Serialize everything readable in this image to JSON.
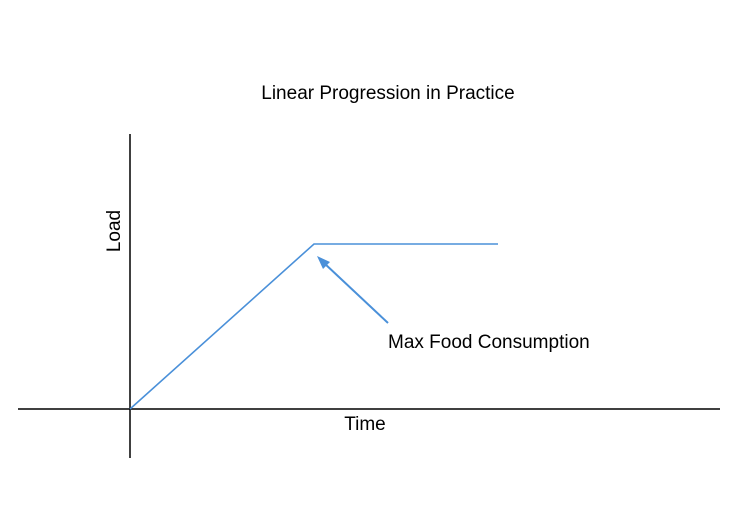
{
  "chart_data": {
    "type": "line",
    "title": "Linear Progression in Practice",
    "xlabel": "Time",
    "ylabel": "Load",
    "series": [
      {
        "x": [
          0,
          1,
          2
        ],
        "values": [
          0,
          1,
          1
        ]
      }
    ],
    "annotation": "Max Food Consumption",
    "grid": false,
    "colors": {
      "series": "#4a90d9",
      "axes": "#000000",
      "text": "#000000"
    }
  }
}
